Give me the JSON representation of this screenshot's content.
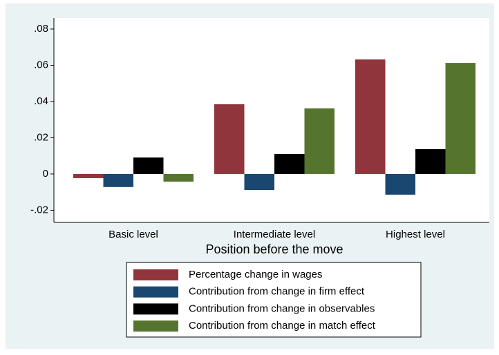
{
  "chart_data": {
    "type": "bar",
    "categories": [
      "Basic level",
      "Intermediate level",
      "Highest level"
    ],
    "x_label": "Position before the move",
    "series": [
      {
        "name": "Percentage change in wages",
        "color": "#90353b",
        "values": [
          -0.0023,
          0.0385,
          0.0632
        ]
      },
      {
        "name": "Contribution from change in firm effect",
        "color": "#1a476f",
        "values": [
          -0.0072,
          -0.0088,
          -0.0114
        ]
      },
      {
        "name": "Contribution from change in observables",
        "color": "#000000",
        "values": [
          0.0091,
          0.011,
          0.0137
        ]
      },
      {
        "name": "Contribution from change in match effect",
        "color": "#55752f",
        "values": [
          -0.0042,
          0.0362,
          0.0613
        ]
      }
    ],
    "ylim": [
      -0.0267,
      0.0861
    ],
    "yticks": [
      {
        "value": -0.02,
        "label": "-.02"
      },
      0,
      {
        "value": 0.02,
        "label": ".02"
      },
      {
        "value": 0.04,
        "label": ".04"
      },
      {
        "value": 0.06,
        "label": ".06"
      },
      {
        "value": 0.08,
        "label": ".08"
      }
    ],
    "legend": "bottom"
  }
}
